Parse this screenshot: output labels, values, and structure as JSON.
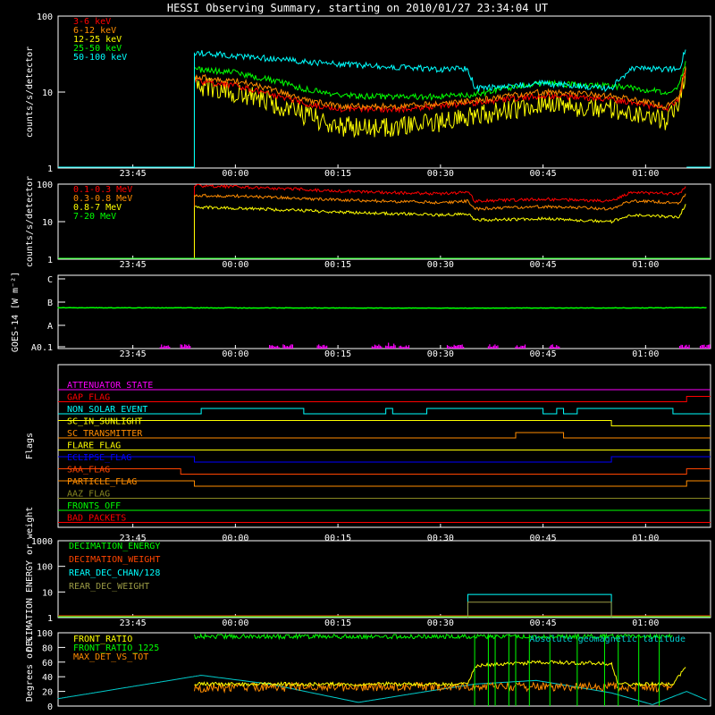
{
  "title": "HESSI Observing Summary, starting on 2010/01/27 23:34:04 UT",
  "time_axis": {
    "start": "23:34:04",
    "end": "01:09:30",
    "tick_labels": [
      "23:45",
      "00:00",
      "00:15",
      "00:30",
      "00:45",
      "01:00"
    ]
  },
  "chart_data": [
    {
      "id": "lightcurve-low",
      "type": "line",
      "ylabel": "counts/s/detector",
      "y_scale": "log",
      "ylim": [
        1,
        100
      ],
      "y_tick_labels": [
        "1",
        "10",
        "100"
      ],
      "legend_position": "top-left",
      "series": [
        {
          "name": "3-6 keV",
          "color": "#ff0000",
          "x": [
            "23:54",
            "00:00",
            "00:10",
            "00:15",
            "00:25",
            "00:34",
            "00:45",
            "00:55",
            "01:03",
            "01:05",
            "01:06"
          ],
          "values": [
            14,
            12,
            7,
            6,
            6,
            7,
            9,
            8,
            6,
            8,
            22
          ]
        },
        {
          "name": "6-12 keV",
          "color": "#ff8c00",
          "x": [
            "23:54",
            "00:00",
            "00:10",
            "00:15",
            "00:25",
            "00:34",
            "00:45",
            "00:55",
            "01:03",
            "01:05",
            "01:06"
          ],
          "values": [
            16,
            14,
            8,
            6.5,
            6.5,
            7.5,
            10,
            9,
            6.5,
            9,
            24
          ]
        },
        {
          "name": "12-25 keV",
          "color": "#ffff00",
          "x": [
            "23:54",
            "00:00",
            "00:10",
            "00:15",
            "00:25",
            "00:34",
            "00:45",
            "00:55",
            "01:03",
            "01:05",
            "01:06"
          ],
          "values": [
            12,
            10,
            5,
            3.5,
            3.5,
            4.5,
            7,
            6,
            4,
            7,
            18
          ]
        },
        {
          "name": "25-50 keV",
          "color": "#00ff00",
          "x": [
            "23:54",
            "00:00",
            "00:10",
            "00:15",
            "00:25",
            "00:34",
            "00:45",
            "00:55",
            "01:03",
            "01:05",
            "01:06"
          ],
          "values": [
            20,
            18,
            11,
            9,
            8.5,
            9,
            13,
            12,
            10,
            12,
            28
          ]
        },
        {
          "name": "50-100 keV",
          "color": "#00ffff",
          "x": [
            "23:54",
            "00:00",
            "00:10",
            "00:20",
            "00:30",
            "00:34",
            "00:35",
            "00:45",
            "00:55",
            "00:58",
            "01:05",
            "01:06"
          ],
          "values": [
            33,
            30,
            25,
            22,
            20,
            20,
            11,
            13,
            11,
            20,
            20,
            40
          ]
        }
      ]
    },
    {
      "id": "lightcurve-high",
      "type": "line",
      "ylabel": "counts/s/detector",
      "y_scale": "log",
      "ylim": [
        1,
        100
      ],
      "y_tick_labels": [
        "1",
        "10",
        "100"
      ],
      "legend_position": "top-left",
      "series": [
        {
          "name": "0.1-0.3 MeV",
          "color": "#ff0000",
          "x": [
            "23:54",
            "00:00",
            "00:15",
            "00:30",
            "00:34",
            "00:35",
            "00:45",
            "00:55",
            "00:58",
            "01:05",
            "01:06"
          ],
          "values": [
            90,
            85,
            65,
            55,
            60,
            35,
            40,
            35,
            60,
            55,
            95
          ]
        },
        {
          "name": "0.3-0.8 MeV",
          "color": "#ff8c00",
          "x": [
            "23:54",
            "00:00",
            "00:15",
            "00:30",
            "00:34",
            "00:35",
            "00:45",
            "00:55",
            "00:58",
            "01:05",
            "01:06"
          ],
          "values": [
            50,
            48,
            38,
            32,
            35,
            22,
            25,
            22,
            36,
            32,
            60
          ]
        },
        {
          "name": "0.8-7 MeV",
          "color": "#ffff00",
          "x": [
            "23:54",
            "00:00",
            "00:15",
            "00:30",
            "00:34",
            "00:35",
            "00:45",
            "00:55",
            "00:58",
            "01:05",
            "01:06"
          ],
          "values": [
            24,
            23,
            18,
            15,
            16,
            11,
            12,
            10,
            15,
            13,
            30
          ]
        },
        {
          "name": "7-20 MeV",
          "color": "#00ff00",
          "x": [
            "23:54",
            "01:06"
          ],
          "values": [
            1,
            1
          ]
        }
      ]
    },
    {
      "id": "goes",
      "type": "line",
      "ylabel": "GOES-14 [W m⁻²]",
      "y_scale": "log",
      "y_tick_labels": [
        "A0.1",
        "A",
        "B",
        "C"
      ],
      "series": [
        {
          "name": "GOES long",
          "color": "#00ff00",
          "x": [
            "23:34",
            "00:00",
            "00:30",
            "01:00",
            "01:09"
          ],
          "values": [
            4.8e-07,
            4.7e-07,
            4.6e-07,
            4.7e-07,
            4.8e-07
          ]
        },
        {
          "name": "GOES short",
          "color": "#ff00ff",
          "x": [
            "23:49",
            "23:52",
            "00:05",
            "00:07",
            "00:12",
            "00:20",
            "00:22",
            "00:24",
            "00:31",
            "00:32",
            "00:37",
            "00:41",
            "00:46",
            "01:05",
            "01:08"
          ],
          "values": [
            3e-08,
            2e-08,
            2e-08,
            3e-08,
            3e-08,
            5e-08,
            6e-08,
            4e-08,
            4e-08,
            4e-08,
            5e-08,
            2e-08,
            2e-08,
            3e-08,
            3e-08
          ]
        }
      ]
    },
    {
      "id": "flags",
      "type": "line",
      "ylabel": "Flags",
      "series": [
        {
          "name": "ATTENUATOR_STATE",
          "color": "#ff00ff"
        },
        {
          "name": "GAP_FLAG",
          "color": "#ff0000"
        },
        {
          "name": "NON_SOLAR_EVENT",
          "color": "#00ffff"
        },
        {
          "name": "SC_IN_SUNLIGHT",
          "color": "#ffff00"
        },
        {
          "name": "SC_TRANSMITTER",
          "color": "#ff8c00"
        },
        {
          "name": "FLARE_FLAG",
          "color": "#ffff00"
        },
        {
          "name": "ECLIPSE_FLAG",
          "color": "#0000ff"
        },
        {
          "name": "SAA_FLAG",
          "color": "#ff4500"
        },
        {
          "name": "PARTICLE_FLAG",
          "color": "#ff8c00"
        },
        {
          "name": "AAZ_FLAG",
          "color": "#888822"
        },
        {
          "name": "FRONTS_OFF",
          "color": "#00ff00"
        },
        {
          "name": "BAD_PACKETS",
          "color": "#ff0000"
        }
      ]
    },
    {
      "id": "decimation",
      "type": "line",
      "ylabel": "DECIMATION ENERGY or weight",
      "y_scale": "log",
      "ylim": [
        1,
        1000
      ],
      "y_tick_labels": [
        "1",
        "10",
        "100",
        "1000"
      ],
      "series": [
        {
          "name": "DECIMATION_ENERGY",
          "color": "#00ff00",
          "x": [
            "23:34",
            "01:09"
          ],
          "values": [
            1,
            1
          ]
        },
        {
          "name": "DECIMATION_WEIGHT",
          "color": "#ff4500",
          "x": [
            "23:34",
            "01:09"
          ],
          "values": [
            1,
            1
          ]
        },
        {
          "name": "REAR_DEC_CHAN/128",
          "color": "#00ffff",
          "x": [
            "00:34",
            "00:55"
          ],
          "values": [
            8,
            8
          ]
        },
        {
          "name": "REAR_DEC_WEIGHT",
          "color": "#999944",
          "x": [
            "00:34",
            "00:55"
          ],
          "values": [
            4,
            4
          ]
        }
      ]
    },
    {
      "id": "ratios",
      "type": "line",
      "ylabel": "Degrees or %",
      "ylim": [
        0,
        100
      ],
      "y_tick_labels": [
        "0",
        "20",
        "40",
        "60",
        "80",
        "100"
      ],
      "series": [
        {
          "name": "FRONT_RATIO",
          "color": "#ffff00",
          "x": [
            "23:54",
            "00:34",
            "00:35",
            "00:45",
            "00:55",
            "00:56",
            "01:04",
            "01:06"
          ],
          "values": [
            30,
            30,
            55,
            60,
            58,
            30,
            30,
            55
          ]
        },
        {
          "name": "FRONT_RATIO_1225",
          "color": "#00ff00",
          "x": [
            "23:54",
            "00:34",
            "00:55",
            "01:04"
          ],
          "values": [
            95,
            95,
            95,
            95
          ]
        },
        {
          "name": "MAX_DET_VS_TOT",
          "color": "#ff8c00",
          "x": [
            "23:54",
            "00:34",
            "00:55",
            "01:04"
          ],
          "values": [
            25,
            27,
            26,
            25
          ]
        },
        {
          "name": "Absolute geomagnetic latitude",
          "color": "#00cccc",
          "x": [
            "23:34",
            "23:55",
            "00:05",
            "00:18",
            "00:28",
            "00:35",
            "00:44",
            "00:55",
            "01:01",
            "01:06",
            "01:09"
          ],
          "values": [
            10,
            42,
            30,
            5,
            20,
            30,
            35,
            18,
            2,
            20,
            8
          ]
        }
      ]
    }
  ]
}
